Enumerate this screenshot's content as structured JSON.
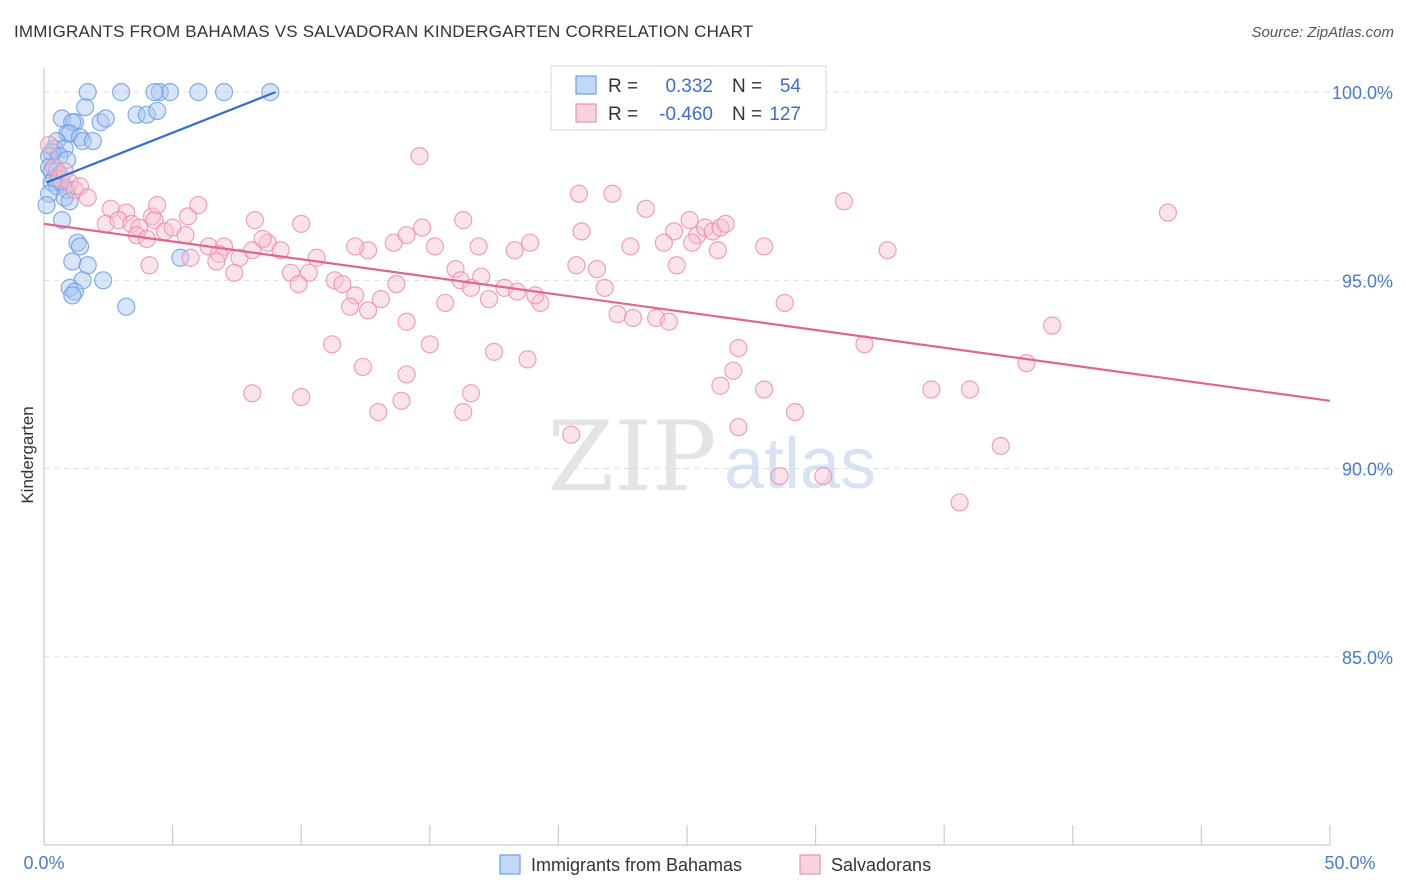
{
  "chart_data": {
    "type": "scatter",
    "title": "IMMIGRANTS FROM BAHAMAS VS SALVADORAN KINDERGARTEN CORRELATION CHART",
    "source": "Source: ZipAtlas.com",
    "xlabel": "",
    "ylabel": "Kindergarten",
    "xlim": [
      0,
      50
    ],
    "ylim": [
      80,
      100.8
    ],
    "x_tick_labels": {
      "left": "0.0%",
      "right": "50.0%"
    },
    "y_ticks": [
      {
        "value": 100,
        "label": "100.0%"
      },
      {
        "value": 95,
        "label": "95.0%"
      },
      {
        "value": 90,
        "label": "90.0%"
      },
      {
        "value": 85,
        "label": "85.0%"
      }
    ],
    "watermark": {
      "zip": "ZIP",
      "atlas": "atlas"
    },
    "legend": {
      "stats": [
        {
          "r_label": "R =",
          "r_value": "0.332",
          "n_label": "N =",
          "n_value": "54"
        },
        {
          "r_label": "R =",
          "r_value": "-0.460",
          "n_label": "N =",
          "n_value": "127"
        }
      ]
    },
    "series": [
      {
        "name": "Immigrants from Bahamas",
        "color": "#6f9fe6",
        "fill": "#a9c6f2",
        "line_color": "#2e6fd1",
        "trend": {
          "x0": 0.1,
          "y0": 97.6,
          "x1": 9.0,
          "y1": 100.0
        },
        "points": [
          [
            1.7,
            100
          ],
          [
            3.0,
            100
          ],
          [
            4.5,
            100
          ],
          [
            4.9,
            100
          ],
          [
            6.0,
            100
          ],
          [
            7.0,
            100
          ],
          [
            8.8,
            100
          ],
          [
            4.3,
            100
          ],
          [
            1.6,
            99.6
          ],
          [
            3.6,
            99.4
          ],
          [
            4.0,
            99.4
          ],
          [
            4.4,
            99.5
          ],
          [
            0.7,
            99.3
          ],
          [
            1.2,
            99.2
          ],
          [
            1.1,
            99.2
          ],
          [
            2.2,
            99.2
          ],
          [
            0.9,
            98.9
          ],
          [
            1.0,
            98.9
          ],
          [
            1.4,
            98.8
          ],
          [
            1.5,
            98.7
          ],
          [
            0.5,
            98.7
          ],
          [
            0.4,
            98.5
          ],
          [
            0.8,
            98.5
          ],
          [
            0.3,
            98.4
          ],
          [
            0.2,
            98.3
          ],
          [
            0.6,
            98.3
          ],
          [
            0.9,
            98.2
          ],
          [
            0.2,
            98.0
          ],
          [
            0.3,
            97.9
          ],
          [
            0.5,
            97.9
          ],
          [
            0.6,
            97.8
          ],
          [
            0.4,
            97.7
          ],
          [
            0.7,
            97.6
          ],
          [
            0.3,
            97.6
          ],
          [
            0.5,
            97.5
          ],
          [
            0.9,
            97.4
          ],
          [
            0.2,
            97.3
          ],
          [
            0.8,
            97.2
          ],
          [
            1.0,
            97.1
          ],
          [
            0.7,
            96.6
          ],
          [
            1.3,
            96.0
          ],
          [
            1.4,
            95.9
          ],
          [
            1.1,
            95.5
          ],
          [
            5.3,
            95.6
          ],
          [
            1.7,
            95.4
          ],
          [
            1.5,
            95.0
          ],
          [
            2.3,
            95.0
          ],
          [
            1.0,
            94.8
          ],
          [
            1.2,
            94.7
          ],
          [
            1.1,
            94.6
          ],
          [
            3.2,
            94.3
          ],
          [
            0.1,
            97.0
          ],
          [
            1.9,
            98.7
          ],
          [
            2.4,
            99.3
          ]
        ]
      },
      {
        "name": "Salvadorans",
        "color": "#ee8fb0",
        "fill": "#f7c1d3",
        "line_color": "#e0668f",
        "trend": {
          "x0": 0.0,
          "y0": 96.5,
          "x1": 50.0,
          "y1": 91.8
        },
        "points": [
          [
            0.2,
            98.6
          ],
          [
            0.4,
            98.0
          ],
          [
            0.6,
            97.7
          ],
          [
            0.8,
            97.9
          ],
          [
            1.0,
            97.6
          ],
          [
            1.2,
            97.4
          ],
          [
            1.4,
            97.5
          ],
          [
            1.7,
            97.2
          ],
          [
            2.6,
            96.9
          ],
          [
            3.2,
            96.8
          ],
          [
            4.2,
            96.7
          ],
          [
            5.6,
            96.7
          ],
          [
            2.4,
            96.5
          ],
          [
            2.9,
            96.6
          ],
          [
            3.4,
            96.5
          ],
          [
            3.7,
            96.4
          ],
          [
            4.3,
            96.6
          ],
          [
            4.7,
            96.3
          ],
          [
            5.0,
            96.4
          ],
          [
            5.5,
            96.2
          ],
          [
            3.6,
            96.2
          ],
          [
            4.0,
            96.1
          ],
          [
            6.0,
            97.0
          ],
          [
            4.4,
            97.0
          ],
          [
            6.4,
            95.9
          ],
          [
            7.0,
            95.9
          ],
          [
            7.6,
            95.6
          ],
          [
            8.1,
            95.8
          ],
          [
            8.7,
            96.0
          ],
          [
            9.2,
            95.8
          ],
          [
            6.8,
            95.7
          ],
          [
            5.7,
            95.6
          ],
          [
            6.7,
            95.5
          ],
          [
            4.1,
            95.4
          ],
          [
            7.4,
            95.2
          ],
          [
            9.6,
            95.2
          ],
          [
            10.3,
            95.2
          ],
          [
            9.9,
            94.9
          ],
          [
            11.3,
            95.0
          ],
          [
            11.6,
            94.9
          ],
          [
            12.1,
            94.6
          ],
          [
            11.9,
            94.3
          ],
          [
            12.6,
            94.2
          ],
          [
            13.1,
            94.5
          ],
          [
            14.1,
            93.9
          ],
          [
            8.2,
            96.6
          ],
          [
            10.0,
            96.5
          ],
          [
            8.5,
            96.1
          ],
          [
            10.6,
            95.6
          ],
          [
            12.6,
            95.8
          ],
          [
            13.6,
            96.0
          ],
          [
            14.1,
            96.2
          ],
          [
            14.7,
            96.4
          ],
          [
            15.2,
            95.9
          ],
          [
            16.0,
            95.3
          ],
          [
            16.2,
            95.0
          ],
          [
            15.6,
            94.4
          ],
          [
            17.0,
            95.1
          ],
          [
            17.3,
            94.5
          ],
          [
            16.3,
            96.6
          ],
          [
            16.9,
            95.9
          ],
          [
            18.3,
            95.8
          ],
          [
            18.9,
            96.0
          ],
          [
            19.3,
            94.4
          ],
          [
            17.9,
            94.8
          ],
          [
            18.4,
            94.7
          ],
          [
            19.1,
            94.6
          ],
          [
            20.7,
            95.4
          ],
          [
            20.9,
            96.3
          ],
          [
            21.5,
            95.3
          ],
          [
            21.8,
            94.8
          ],
          [
            22.8,
            95.9
          ],
          [
            22.3,
            94.1
          ],
          [
            22.9,
            94.0
          ],
          [
            23.8,
            94.0
          ],
          [
            24.3,
            93.9
          ],
          [
            24.6,
            95.4
          ],
          [
            24.5,
            96.3
          ],
          [
            23.4,
            96.9
          ],
          [
            25.1,
            96.6
          ],
          [
            24.1,
            96.0
          ],
          [
            25.4,
            96.2
          ],
          [
            25.7,
            96.4
          ],
          [
            26.0,
            96.3
          ],
          [
            26.3,
            96.4
          ],
          [
            20.8,
            97.3
          ],
          [
            26.5,
            96.5
          ],
          [
            22.1,
            97.3
          ],
          [
            25.2,
            96.0
          ],
          [
            12.1,
            95.9
          ],
          [
            14.6,
            98.3
          ],
          [
            11.2,
            93.3
          ],
          [
            13.7,
            94.9
          ],
          [
            15.0,
            93.3
          ],
          [
            16.6,
            94.8
          ],
          [
            17.5,
            93.1
          ],
          [
            18.8,
            92.9
          ],
          [
            12.4,
            92.7
          ],
          [
            13.0,
            91.5
          ],
          [
            14.1,
            92.5
          ],
          [
            13.9,
            91.8
          ],
          [
            10.0,
            91.9
          ],
          [
            16.3,
            91.5
          ],
          [
            16.6,
            92.0
          ],
          [
            20.5,
            90.9
          ],
          [
            26.2,
            95.8
          ],
          [
            28.0,
            95.9
          ],
          [
            28.8,
            94.4
          ],
          [
            27.0,
            93.2
          ],
          [
            26.8,
            92.6
          ],
          [
            26.3,
            92.2
          ],
          [
            28.0,
            92.1
          ],
          [
            29.2,
            91.5
          ],
          [
            27.0,
            91.1
          ],
          [
            28.6,
            89.8
          ],
          [
            30.3,
            89.8
          ],
          [
            31.1,
            97.1
          ],
          [
            31.9,
            93.3
          ],
          [
            32.8,
            95.8
          ],
          [
            34.5,
            92.1
          ],
          [
            35.6,
            89.1
          ],
          [
            36.0,
            92.1
          ],
          [
            37.2,
            90.6
          ],
          [
            38.2,
            92.8
          ],
          [
            39.2,
            93.8
          ],
          [
            43.7,
            96.8
          ],
          [
            8.1,
            92.0
          ]
        ]
      }
    ]
  }
}
